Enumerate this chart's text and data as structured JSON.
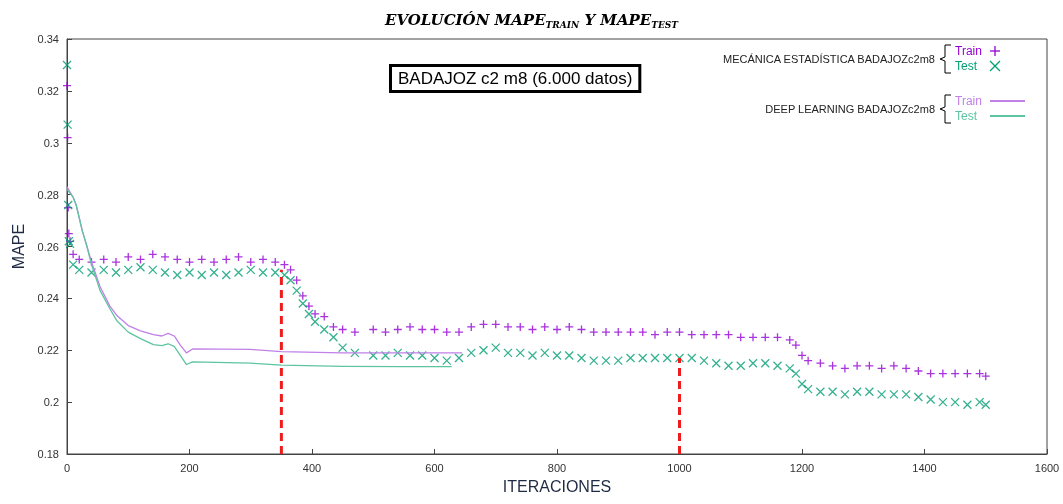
{
  "chart_data": {
    "type": "scatter",
    "title": "EVOLUCIÓN MAPE$_{TRAIN}$ Y MAPE$_{TEST}$",
    "xlabel": "ITERACIONES",
    "ylabel": "MAPE",
    "annotations": [
      "BADAJOZ c2 m8 (6.000 datos)",
      "MECÁNICA ESTADÍSTICA BADAJOZc2m8",
      "DEEP LEARNING BADAJOZc2m8"
    ],
    "xlim": [
      0,
      1600
    ],
    "xticks": [
      0,
      200,
      400,
      600,
      800,
      1000,
      1200,
      1400,
      1600
    ],
    "ylim": [
      0.18,
      0.34
    ],
    "yticks": [
      0.18,
      0.2,
      0.22,
      0.24,
      0.26,
      0.28,
      0.3,
      0.32,
      0.34
    ],
    "grid": false,
    "legend": "top right",
    "series": [
      {
        "name": "Train",
        "marker": "plus",
        "color": "#9400d3",
        "x": [
          0,
          1,
          2,
          3,
          5,
          10,
          20,
          40,
          60,
          80,
          100,
          120,
          140,
          160,
          180,
          200,
          220,
          240,
          260,
          280,
          300,
          320,
          340,
          355,
          365,
          375,
          385,
          395,
          405,
          420,
          435,
          450,
          470,
          500,
          520,
          540,
          560,
          580,
          600,
          620,
          640,
          660,
          680,
          700,
          720,
          740,
          760,
          780,
          800,
          820,
          840,
          860,
          880,
          900,
          920,
          940,
          960,
          980,
          1000,
          1020,
          1040,
          1060,
          1080,
          1100,
          1120,
          1140,
          1160,
          1180,
          1190,
          1200,
          1210,
          1230,
          1250,
          1270,
          1290,
          1310,
          1330,
          1350,
          1370,
          1390,
          1410,
          1430,
          1450,
          1470,
          1490,
          1500
        ],
        "values": [
          0.322,
          0.302,
          0.275,
          0.265,
          0.262,
          0.257,
          0.255,
          0.254,
          0.255,
          0.254,
          0.256,
          0.255,
          0.257,
          0.256,
          0.255,
          0.254,
          0.255,
          0.254,
          0.255,
          0.256,
          0.254,
          0.255,
          0.254,
          0.253,
          0.251,
          0.247,
          0.241,
          0.237,
          0.234,
          0.233,
          0.229,
          0.228,
          0.227,
          0.228,
          0.227,
          0.228,
          0.229,
          0.228,
          0.228,
          0.227,
          0.227,
          0.229,
          0.23,
          0.23,
          0.229,
          0.229,
          0.228,
          0.229,
          0.228,
          0.229,
          0.228,
          0.227,
          0.227,
          0.227,
          0.227,
          0.227,
          0.226,
          0.227,
          0.227,
          0.226,
          0.226,
          0.226,
          0.226,
          0.225,
          0.225,
          0.225,
          0.225,
          0.224,
          0.222,
          0.218,
          0.216,
          0.215,
          0.214,
          0.213,
          0.214,
          0.214,
          0.213,
          0.214,
          0.213,
          0.212,
          0.211,
          0.211,
          0.211,
          0.211,
          0.211,
          0.21
        ]
      },
      {
        "name": "Test",
        "marker": "cross",
        "color": "#009e73",
        "x": [
          0,
          1,
          2,
          3,
          5,
          10,
          20,
          40,
          60,
          80,
          100,
          120,
          140,
          160,
          180,
          200,
          220,
          240,
          260,
          280,
          300,
          320,
          340,
          355,
          365,
          375,
          385,
          395,
          405,
          420,
          435,
          450,
          470,
          500,
          520,
          540,
          560,
          580,
          600,
          620,
          640,
          660,
          680,
          700,
          720,
          740,
          760,
          780,
          800,
          820,
          840,
          860,
          880,
          900,
          920,
          940,
          960,
          980,
          1000,
          1020,
          1040,
          1060,
          1080,
          1100,
          1120,
          1140,
          1160,
          1180,
          1190,
          1200,
          1210,
          1230,
          1250,
          1270,
          1290,
          1310,
          1330,
          1350,
          1370,
          1390,
          1410,
          1430,
          1450,
          1470,
          1490,
          1500
        ],
        "values": [
          0.33,
          0.307,
          0.276,
          0.262,
          0.261,
          0.253,
          0.251,
          0.25,
          0.251,
          0.25,
          0.251,
          0.252,
          0.251,
          0.25,
          0.249,
          0.25,
          0.249,
          0.25,
          0.249,
          0.25,
          0.251,
          0.25,
          0.25,
          0.249,
          0.247,
          0.243,
          0.238,
          0.234,
          0.231,
          0.228,
          0.225,
          0.221,
          0.219,
          0.218,
          0.218,
          0.219,
          0.218,
          0.218,
          0.217,
          0.216,
          0.217,
          0.219,
          0.22,
          0.221,
          0.219,
          0.219,
          0.218,
          0.219,
          0.218,
          0.218,
          0.217,
          0.216,
          0.216,
          0.216,
          0.217,
          0.217,
          0.217,
          0.217,
          0.217,
          0.217,
          0.216,
          0.215,
          0.214,
          0.214,
          0.215,
          0.215,
          0.214,
          0.213,
          0.211,
          0.207,
          0.205,
          0.204,
          0.204,
          0.203,
          0.204,
          0.204,
          0.203,
          0.203,
          0.203,
          0.202,
          0.201,
          0.2,
          0.2,
          0.199,
          0.2,
          0.199
        ]
      },
      {
        "name": "Train",
        "type": "line",
        "marker": "none",
        "line_style": "solid",
        "color": "#c080e8",
        "x": [
          0,
          10,
          15,
          25,
          32,
          40,
          54,
          70,
          81,
          100,
          120,
          141,
          155,
          165,
          175,
          185,
          195,
          205,
          300,
          350,
          450,
          550,
          645
        ],
        "values": [
          0.283,
          0.279,
          0.276,
          0.266,
          0.2605,
          0.254,
          0.2445,
          0.237,
          0.2335,
          0.2295,
          0.2275,
          0.226,
          0.2255,
          0.2265,
          0.2255,
          0.222,
          0.219,
          0.2205,
          0.2203,
          0.2195,
          0.219,
          0.219,
          0.219
        ]
      },
      {
        "name": "Test",
        "type": "line",
        "marker": "none",
        "line_style": "solid",
        "color": "#5ec4a0",
        "x": [
          0,
          10,
          15,
          25,
          32,
          40,
          54,
          70,
          81,
          100,
          120,
          141,
          155,
          165,
          175,
          185,
          195,
          205,
          300,
          350,
          450,
          550,
          628
        ],
        "values": [
          0.282,
          0.279,
          0.276,
          0.266,
          0.2605,
          0.253,
          0.243,
          0.236,
          0.2315,
          0.227,
          0.2245,
          0.2222,
          0.2218,
          0.2225,
          0.2215,
          0.218,
          0.2145,
          0.2155,
          0.215,
          0.2143,
          0.2138,
          0.2137,
          0.2137
        ]
      },
      {
        "type": "line",
        "marker": "none",
        "line_style": "dashed",
        "color": "#ee1c1c",
        "x": [
          350,
          350
        ],
        "values": [
          0.18,
          0.251
        ]
      },
      {
        "type": "line",
        "marker": "none",
        "line_style": "dashed",
        "color": "#ee1c1c",
        "x": [
          1000,
          1000
        ],
        "values": [
          0.18,
          0.217
        ]
      }
    ]
  }
}
